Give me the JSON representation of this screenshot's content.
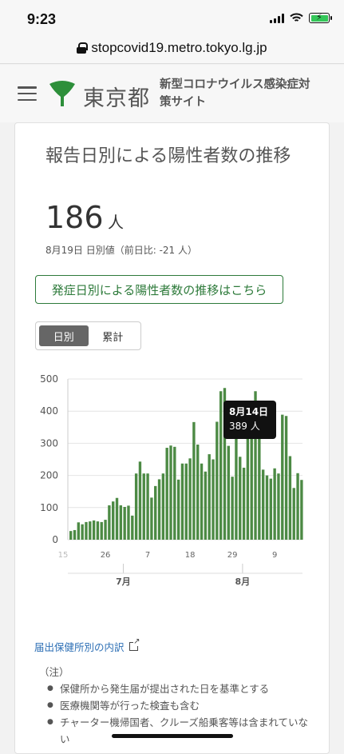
{
  "status_bar": {
    "time": "9:23"
  },
  "browser": {
    "url": "stopcovid19.metro.tokyo.lg.jp"
  },
  "header": {
    "logo_text": "東京都",
    "site_title": "新型コロナウイルス感染症対策サイト"
  },
  "card": {
    "title": "報告日別による陽性者数の推移",
    "value": "186",
    "unit": "人",
    "date_note": "8月19日 日別値（前日比: -21 人）",
    "link_button": "発症日別による陽性者数の推移はこちら",
    "toggle": {
      "daily": "日別",
      "cumulative": "累計"
    },
    "tooltip": {
      "date": "8月14日",
      "value": "389 人"
    },
    "detail_link": "届出保健所別の内訳",
    "notes_heading": "（注）",
    "notes": [
      "保健所から発生届が提出された日を基準とする",
      "医療機関等が行った検査も含む",
      "チャーター機帰国者、クルーズ船乗客等は含まれていない"
    ]
  },
  "colors": {
    "bar": "#4c8a44",
    "accent": "#2d7a3a",
    "link": "#2d6fb5"
  },
  "chart_data": {
    "type": "bar",
    "series": [
      {
        "name": "陽性者数",
        "values": [
          27,
          30,
          54,
          48,
          55,
          57,
          60,
          57,
          55,
          62,
          107,
          119,
          130,
          107,
          102,
          106,
          75,
          206,
          243,
          206,
          206,
          131,
          167,
          188,
          206,
          286,
          293,
          289,
          187,
          237,
          237,
          253,
          366,
          296,
          237,
          212,
          266,
          250,
          367,
          462,
          472,
          292,
          196,
          331,
          258,
          224,
          360,
          382,
          462,
          389,
          218,
          200,
          190,
          222,
          206,
          389,
          385,
          260,
          161,
          207,
          186
        ]
      }
    ],
    "x_ticks": [
      "15",
      "26",
      "7",
      "18",
      "29",
      "9"
    ],
    "month_labels": [
      "7月",
      "8月"
    ],
    "y_ticks": [
      0,
      100,
      200,
      300,
      400,
      500
    ],
    "ylim": [
      0,
      500
    ],
    "grid": true
  }
}
